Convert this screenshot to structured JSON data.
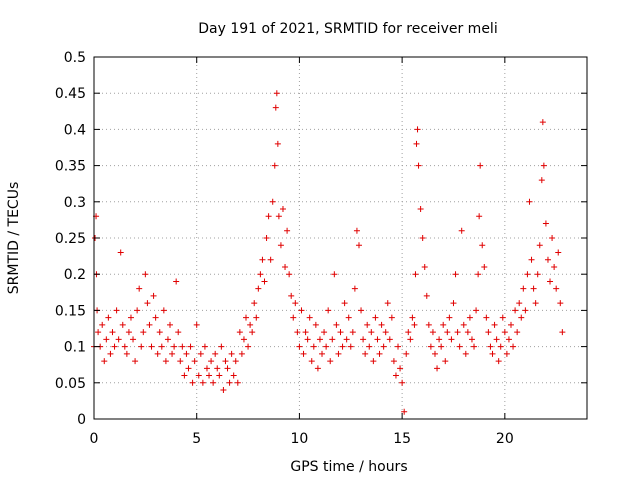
{
  "chart_data": {
    "type": "scatter",
    "title": "Day 191 of 2021, SRMTID for receiver meli",
    "xlabel": "GPS time / hours",
    "ylabel": "SRMTID / TECUs",
    "xlim": [
      0,
      24
    ],
    "ylim": [
      0,
      0.5
    ],
    "x_ticks": [
      0,
      5,
      10,
      15,
      20
    ],
    "x_tick_labels": [
      "0",
      "5",
      "10",
      "15",
      "20"
    ],
    "y_ticks": [
      0,
      0.05,
      0.1,
      0.15,
      0.2,
      0.25,
      0.3,
      0.35,
      0.4,
      0.45,
      0.5
    ],
    "y_tick_labels": [
      "0",
      "0.05",
      "0.1",
      "0.15",
      "0.2",
      "0.25",
      "0.3",
      "0.35",
      "0.4",
      "0.45",
      "0.5"
    ],
    "grid": true,
    "marker": "+",
    "color": "#e00000",
    "series": [
      {
        "name": "SRMTID",
        "x": [
          0.0,
          0.05,
          0.1,
          0.12,
          0.15,
          0.2,
          0.3,
          0.4,
          0.5,
          0.6,
          0.7,
          0.8,
          0.9,
          1.0,
          1.1,
          1.2,
          1.3,
          1.4,
          1.5,
          1.6,
          1.7,
          1.8,
          1.9,
          2.0,
          2.1,
          2.2,
          2.3,
          2.4,
          2.5,
          2.6,
          2.7,
          2.8,
          2.9,
          3.0,
          3.1,
          3.2,
          3.3,
          3.4,
          3.5,
          3.6,
          3.7,
          3.8,
          3.9,
          4.0,
          4.1,
          4.2,
          4.3,
          4.4,
          4.5,
          4.6,
          4.7,
          4.8,
          4.9,
          5.0,
          5.1,
          5.2,
          5.3,
          5.4,
          5.5,
          5.6,
          5.7,
          5.8,
          5.9,
          6.0,
          6.1,
          6.2,
          6.3,
          6.4,
          6.5,
          6.6,
          6.7,
          6.8,
          6.9,
          7.0,
          7.1,
          7.2,
          7.3,
          7.4,
          7.5,
          7.6,
          7.7,
          7.8,
          7.9,
          8.0,
          8.1,
          8.2,
          8.3,
          8.4,
          8.5,
          8.6,
          8.7,
          8.8,
          8.85,
          8.9,
          8.95,
          9.0,
          9.1,
          9.2,
          9.3,
          9.4,
          9.5,
          9.6,
          9.7,
          9.8,
          9.9,
          10.0,
          10.1,
          10.2,
          10.3,
          10.4,
          10.5,
          10.6,
          10.7,
          10.8,
          10.9,
          11.0,
          11.1,
          11.2,
          11.3,
          11.4,
          11.5,
          11.6,
          11.7,
          11.8,
          11.9,
          12.0,
          12.1,
          12.2,
          12.3,
          12.4,
          12.5,
          12.6,
          12.7,
          12.8,
          12.9,
          13.0,
          13.1,
          13.2,
          13.3,
          13.4,
          13.5,
          13.6,
          13.7,
          13.8,
          13.9,
          14.0,
          14.1,
          14.2,
          14.3,
          14.4,
          14.5,
          14.6,
          14.7,
          14.8,
          14.9,
          15.0,
          15.1,
          15.2,
          15.3,
          15.4,
          15.5,
          15.6,
          15.65,
          15.7,
          15.75,
          15.8,
          15.9,
          16.0,
          16.1,
          16.2,
          16.3,
          16.4,
          16.5,
          16.6,
          16.7,
          16.8,
          16.9,
          17.0,
          17.1,
          17.2,
          17.3,
          17.4,
          17.5,
          17.6,
          17.7,
          17.8,
          17.9,
          18.0,
          18.1,
          18.2,
          18.3,
          18.4,
          18.5,
          18.6,
          18.7,
          18.75,
          18.8,
          18.9,
          19.0,
          19.1,
          19.2,
          19.3,
          19.4,
          19.5,
          19.6,
          19.7,
          19.8,
          19.9,
          20.0,
          20.1,
          20.2,
          20.3,
          20.4,
          20.5,
          20.6,
          20.7,
          20.8,
          20.9,
          21.0,
          21.1,
          21.2,
          21.3,
          21.4,
          21.5,
          21.6,
          21.7,
          21.8,
          21.85,
          21.9,
          22.0,
          22.1,
          22.2,
          22.3,
          22.4,
          22.5,
          22.6,
          22.7,
          22.8
        ],
        "y": [
          0.1,
          0.25,
          0.28,
          0.2,
          0.15,
          0.12,
          0.1,
          0.13,
          0.08,
          0.11,
          0.14,
          0.09,
          0.12,
          0.1,
          0.15,
          0.11,
          0.23,
          0.13,
          0.1,
          0.09,
          0.12,
          0.14,
          0.11,
          0.08,
          0.15,
          0.18,
          0.1,
          0.12,
          0.2,
          0.16,
          0.13,
          0.1,
          0.17,
          0.14,
          0.09,
          0.12,
          0.1,
          0.15,
          0.08,
          0.11,
          0.13,
          0.09,
          0.1,
          0.19,
          0.12,
          0.08,
          0.1,
          0.06,
          0.09,
          0.07,
          0.1,
          0.05,
          0.08,
          0.13,
          0.06,
          0.09,
          0.05,
          0.1,
          0.07,
          0.06,
          0.08,
          0.05,
          0.09,
          0.07,
          0.06,
          0.1,
          0.04,
          0.08,
          0.07,
          0.05,
          0.09,
          0.06,
          0.08,
          0.05,
          0.12,
          0.09,
          0.11,
          0.14,
          0.1,
          0.13,
          0.12,
          0.16,
          0.14,
          0.18,
          0.2,
          0.22,
          0.19,
          0.25,
          0.28,
          0.22,
          0.3,
          0.35,
          0.43,
          0.45,
          0.38,
          0.28,
          0.24,
          0.29,
          0.21,
          0.26,
          0.2,
          0.17,
          0.14,
          0.16,
          0.12,
          0.1,
          0.15,
          0.09,
          0.12,
          0.11,
          0.14,
          0.08,
          0.1,
          0.13,
          0.07,
          0.11,
          0.09,
          0.12,
          0.1,
          0.15,
          0.08,
          0.11,
          0.2,
          0.13,
          0.09,
          0.12,
          0.1,
          0.16,
          0.11,
          0.14,
          0.1,
          0.12,
          0.18,
          0.26,
          0.24,
          0.15,
          0.11,
          0.09,
          0.13,
          0.1,
          0.12,
          0.08,
          0.14,
          0.11,
          0.09,
          0.13,
          0.1,
          0.12,
          0.16,
          0.11,
          0.14,
          0.08,
          0.06,
          0.1,
          0.07,
          0.05,
          0.01,
          0.09,
          0.12,
          0.11,
          0.14,
          0.13,
          0.2,
          0.38,
          0.4,
          0.35,
          0.29,
          0.25,
          0.21,
          0.17,
          0.13,
          0.1,
          0.12,
          0.09,
          0.07,
          0.11,
          0.1,
          0.13,
          0.08,
          0.12,
          0.14,
          0.11,
          0.16,
          0.2,
          0.12,
          0.1,
          0.26,
          0.13,
          0.09,
          0.12,
          0.14,
          0.11,
          0.1,
          0.15,
          0.2,
          0.28,
          0.35,
          0.24,
          0.21,
          0.14,
          0.12,
          0.1,
          0.09,
          0.13,
          0.11,
          0.08,
          0.1,
          0.14,
          0.12,
          0.09,
          0.11,
          0.13,
          0.1,
          0.15,
          0.12,
          0.16,
          0.14,
          0.18,
          0.15,
          0.2,
          0.3,
          0.22,
          0.18,
          0.16,
          0.2,
          0.24,
          0.33,
          0.41,
          0.35,
          0.27,
          0.22,
          0.19,
          0.25,
          0.21,
          0.18,
          0.23,
          0.16,
          0.12
        ]
      }
    ]
  }
}
